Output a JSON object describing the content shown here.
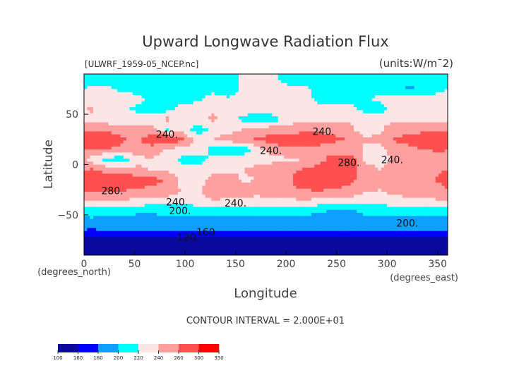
{
  "chart_data": {
    "type": "heatmap",
    "title": "Upward Longwave Radiation Flux",
    "subtitle_left": "[ULWRF_1959-05_NCEP.nc]",
    "subtitle_right": "(units:W/m¯2)",
    "xlabel": "Longitude",
    "ylabel": "Latitude",
    "x_unit_label": "(degrees_east)",
    "y_unit_label": "(degrees_north)",
    "xlim": [
      0,
      360
    ],
    "ylim": [
      -90,
      90
    ],
    "xticks": [
      0,
      50,
      100,
      150,
      200,
      250,
      300,
      350
    ],
    "yticks": [
      -50,
      0,
      50
    ],
    "contour_interval_label": "CONTOUR INTERVAL = 2.000E+01",
    "grid_lon_centers_step": 15,
    "grid_lat_centers": [
      85,
      75,
      65,
      55,
      45,
      35,
      25,
      15,
      5,
      -5,
      -15,
      -25,
      -35,
      -45,
      -55,
      -65,
      -75,
      -85
    ],
    "values": [
      [
        210,
        210,
        210,
        210,
        210,
        210,
        210,
        210,
        210,
        210,
        225,
        225,
        225,
        210,
        210,
        210,
        210,
        210,
        210,
        210,
        210,
        210,
        210,
        210
      ],
      [
        228,
        225,
        215,
        212,
        205,
        212,
        210,
        210,
        212,
        210,
        225,
        230,
        232,
        228,
        225,
        212,
        210,
        212,
        210,
        212,
        208,
        195,
        210,
        212
      ],
      [
        232,
        235,
        232,
        228,
        215,
        212,
        210,
        215,
        230,
        222,
        228,
        232,
        235,
        232,
        228,
        215,
        212,
        210,
        215,
        225,
        232,
        230,
        228,
        232
      ],
      [
        242,
        232,
        225,
        215,
        210,
        212,
        230,
        232,
        235,
        235,
        232,
        230,
        235,
        232,
        228,
        225,
        230,
        232,
        212,
        210,
        230,
        235,
        232,
        235
      ],
      [
        236,
        232,
        230,
        232,
        236,
        245,
        238,
        234,
        245,
        228,
        215,
        200,
        210,
        230,
        232,
        235,
        232,
        238,
        232,
        235,
        236,
        232,
        238,
        236
      ],
      [
        252,
        250,
        248,
        246,
        244,
        215,
        230,
        208,
        225,
        232,
        240,
        248,
        252,
        250,
        256,
        258,
        252,
        244,
        230,
        236,
        250,
        252,
        250,
        248
      ],
      [
        290,
        285,
        262,
        256,
        275,
        285,
        262,
        232,
        240,
        250,
        258,
        262,
        268,
        272,
        270,
        268,
        265,
        258,
        242,
        246,
        262,
        268,
        282,
        292
      ],
      [
        262,
        258,
        255,
        250,
        248,
        238,
        232,
        234,
        212,
        202,
        205,
        235,
        250,
        256,
        258,
        254,
        250,
        245,
        238,
        232,
        250,
        255,
        260,
        262
      ],
      [
        232,
        212,
        205,
        236,
        238,
        232,
        215,
        210,
        226,
        234,
        232,
        228,
        234,
        236,
        240,
        250,
        272,
        276,
        236,
        230,
        245,
        248,
        252,
        255
      ],
      [
        262,
        252,
        248,
        244,
        238,
        234,
        228,
        230,
        232,
        235,
        240,
        248,
        252,
        255,
        262,
        270,
        278,
        272,
        252,
        240,
        246,
        250,
        252,
        258
      ],
      [
        272,
        275,
        276,
        270,
        266,
        258,
        232,
        228,
        250,
        252,
        236,
        240,
        250,
        258,
        268,
        274,
        276,
        268,
        250,
        246,
        250,
        252,
        258,
        262
      ],
      [
        268,
        266,
        262,
        258,
        256,
        252,
        238,
        236,
        255,
        258,
        252,
        250,
        254,
        258,
        260,
        262,
        258,
        254,
        244,
        240,
        248,
        250,
        252,
        256
      ],
      [
        240,
        242,
        240,
        238,
        236,
        234,
        234,
        236,
        240,
        238,
        236,
        234,
        236,
        238,
        240,
        238,
        236,
        234,
        232,
        230,
        234,
        236,
        238,
        240
      ],
      [
        212,
        210,
        208,
        206,
        206,
        206,
        206,
        208,
        210,
        212,
        212,
        210,
        208,
        206,
        206,
        205,
        198,
        195,
        206,
        210,
        210,
        210,
        210,
        212
      ],
      [
        196,
        194,
        194,
        192,
        192,
        194,
        196,
        196,
        194,
        194,
        192,
        192,
        192,
        194,
        194,
        192,
        190,
        192,
        194,
        194,
        194,
        192,
        192,
        194
      ],
      [
        178,
        182,
        184,
        184,
        186,
        186,
        184,
        182,
        184,
        186,
        186,
        184,
        186,
        186,
        186,
        184,
        184,
        184,
        184,
        184,
        184,
        180,
        182,
        182
      ],
      [
        150,
        148,
        146,
        145,
        148,
        150,
        150,
        148,
        146,
        148,
        150,
        150,
        148,
        148,
        150,
        150,
        148,
        148,
        146,
        148,
        150,
        152,
        150,
        150
      ],
      [
        132,
        130,
        128,
        128,
        130,
        132,
        132,
        130,
        128,
        130,
        132,
        130,
        128,
        130,
        132,
        130,
        130,
        128,
        130,
        132,
        130,
        132,
        130,
        130
      ]
    ],
    "levels": [
      100,
      160,
      180,
      200,
      220,
      240,
      260,
      300,
      350
    ],
    "level_labels": [
      "100",
      "160",
      "180",
      "200",
      "220",
      "240",
      "260",
      "300",
      "350"
    ],
    "colors": [
      "#0a0a9c",
      "#0000ff",
      "#0ea0ff",
      "#00ffff",
      "#ffe6e6",
      "#ffa0a0",
      "#ff5050",
      "#ff0000"
    ],
    "contour_labels": [
      {
        "text": "240.",
        "lon": 82,
        "lat": 30
      },
      {
        "text": "240.",
        "lon": 185,
        "lat": 14
      },
      {
        "text": "240.",
        "lon": 237,
        "lat": 33
      },
      {
        "text": "240.",
        "lon": 305,
        "lat": 5
      },
      {
        "text": "280.",
        "lon": 28,
        "lat": -26
      },
      {
        "text": "280.",
        "lon": 262,
        "lat": 2
      },
      {
        "text": "240.",
        "lon": 92,
        "lat": -37
      },
      {
        "text": "240.",
        "lon": 150,
        "lat": -38
      },
      {
        "text": "200.",
        "lon": 95,
        "lat": -46
      },
      {
        "text": "200.",
        "lon": 320,
        "lat": -58
      },
      {
        "text": "160.",
        "lon": 122,
        "lat": -67
      },
      {
        "text": "120.",
        "lon": 103,
        "lat": -72
      }
    ]
  }
}
